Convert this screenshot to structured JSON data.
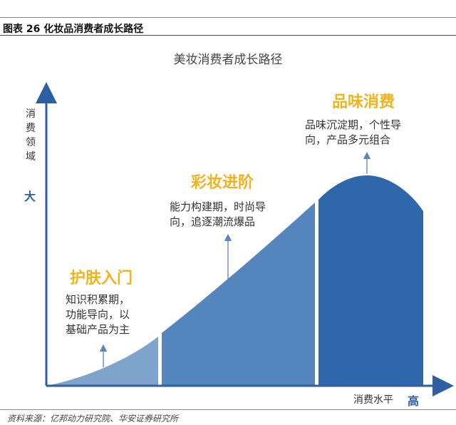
{
  "figure": {
    "title": "图表 26  化妆品消费者成长路径",
    "source": "资料来源：亿邦动力研究院、华安证券研究所"
  },
  "diagram": {
    "title": "美妆消费者成长路径",
    "y_axis": {
      "label": "消费领域",
      "high": "大"
    },
    "x_axis": {
      "label": "消费水平",
      "high": "高"
    },
    "stages": [
      {
        "title": "护肤入门",
        "desc": [
          "知识积累期，",
          "功能导向，以",
          "基础产品为主"
        ]
      },
      {
        "title": "彩妆进阶",
        "desc": [
          "能力构建期，时尚导",
          "向，追逐潮流爆品"
        ]
      },
      {
        "title": "品味消费",
        "desc": [
          "品味沉淀期，个性导",
          "向，产品多元组合"
        ]
      }
    ]
  },
  "colors": {
    "stage1": "#7ea3cd",
    "stage2": "#5486bd",
    "stage3": "#2e67aa",
    "axis": "#2e5fa3",
    "title_accent": "#f3b21b"
  }
}
